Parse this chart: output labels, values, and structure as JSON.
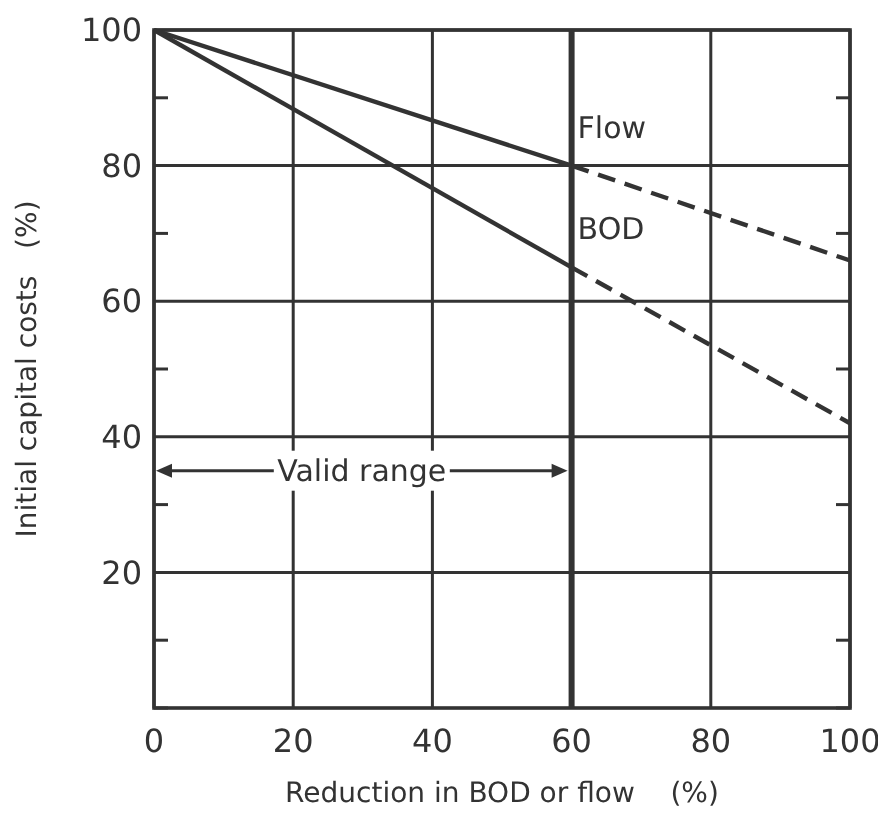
{
  "chart_data": {
    "type": "line",
    "xlabel": "Reduction in BOD or flow    (%)",
    "ylabel": "Initial capital costs   (%)",
    "xlim": [
      0,
      100
    ],
    "xticks": [
      0,
      20,
      40,
      60,
      80,
      100
    ],
    "ylim": [
      0,
      100
    ],
    "yticks": [
      {
        "value": 0,
        "label": null
      },
      {
        "value": 10,
        "label": null
      },
      20,
      {
        "value": 30,
        "label": null
      },
      40,
      {
        "value": 50,
        "label": null
      },
      60,
      {
        "value": 70,
        "label": null
      },
      80,
      {
        "value": 90,
        "label": null
      },
      100
    ],
    "grid": true,
    "marker": "none",
    "series": [
      {
        "name": "Flow",
        "color": "#333333",
        "x": [
          0,
          60
        ],
        "values": [
          100,
          80
        ],
        "line_style": "solid"
      },
      {
        "color": "#333333",
        "x": [
          60,
          100
        ],
        "values": [
          80,
          66
        ],
        "line_style": "dashed"
      },
      {
        "name": "BOD",
        "color": "#333333",
        "x": [
          0,
          60
        ],
        "values": [
          100,
          65
        ],
        "line_style": "solid"
      },
      {
        "color": "#333333",
        "x": [
          60,
          100
        ],
        "values": [
          65,
          42
        ],
        "line_style": "dashed"
      }
    ],
    "ref_lines": [
      {
        "axis": "x",
        "value": 60,
        "color": "#333333",
        "line_style": "solid"
      }
    ],
    "annotations": [
      "Valid range"
    ]
  }
}
